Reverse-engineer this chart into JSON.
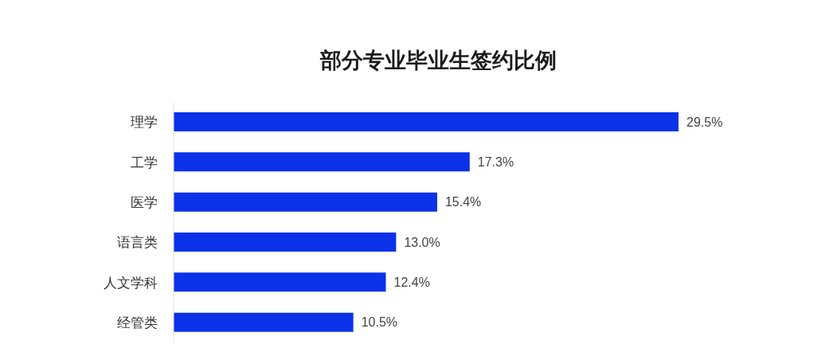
{
  "chart_data": {
    "type": "bar",
    "orientation": "horizontal",
    "title": "部分专业毕业生签约比例",
    "categories": [
      "理学",
      "工学",
      "医学",
      "语言类",
      "人文学科",
      "经管类"
    ],
    "values": [
      29.5,
      17.3,
      15.4,
      13.0,
      12.4,
      10.5
    ],
    "value_labels": [
      "29.5%",
      "17.3%",
      "15.4%",
      "13.0%",
      "12.4%",
      "10.5%"
    ],
    "color": "#0b32e8"
  }
}
